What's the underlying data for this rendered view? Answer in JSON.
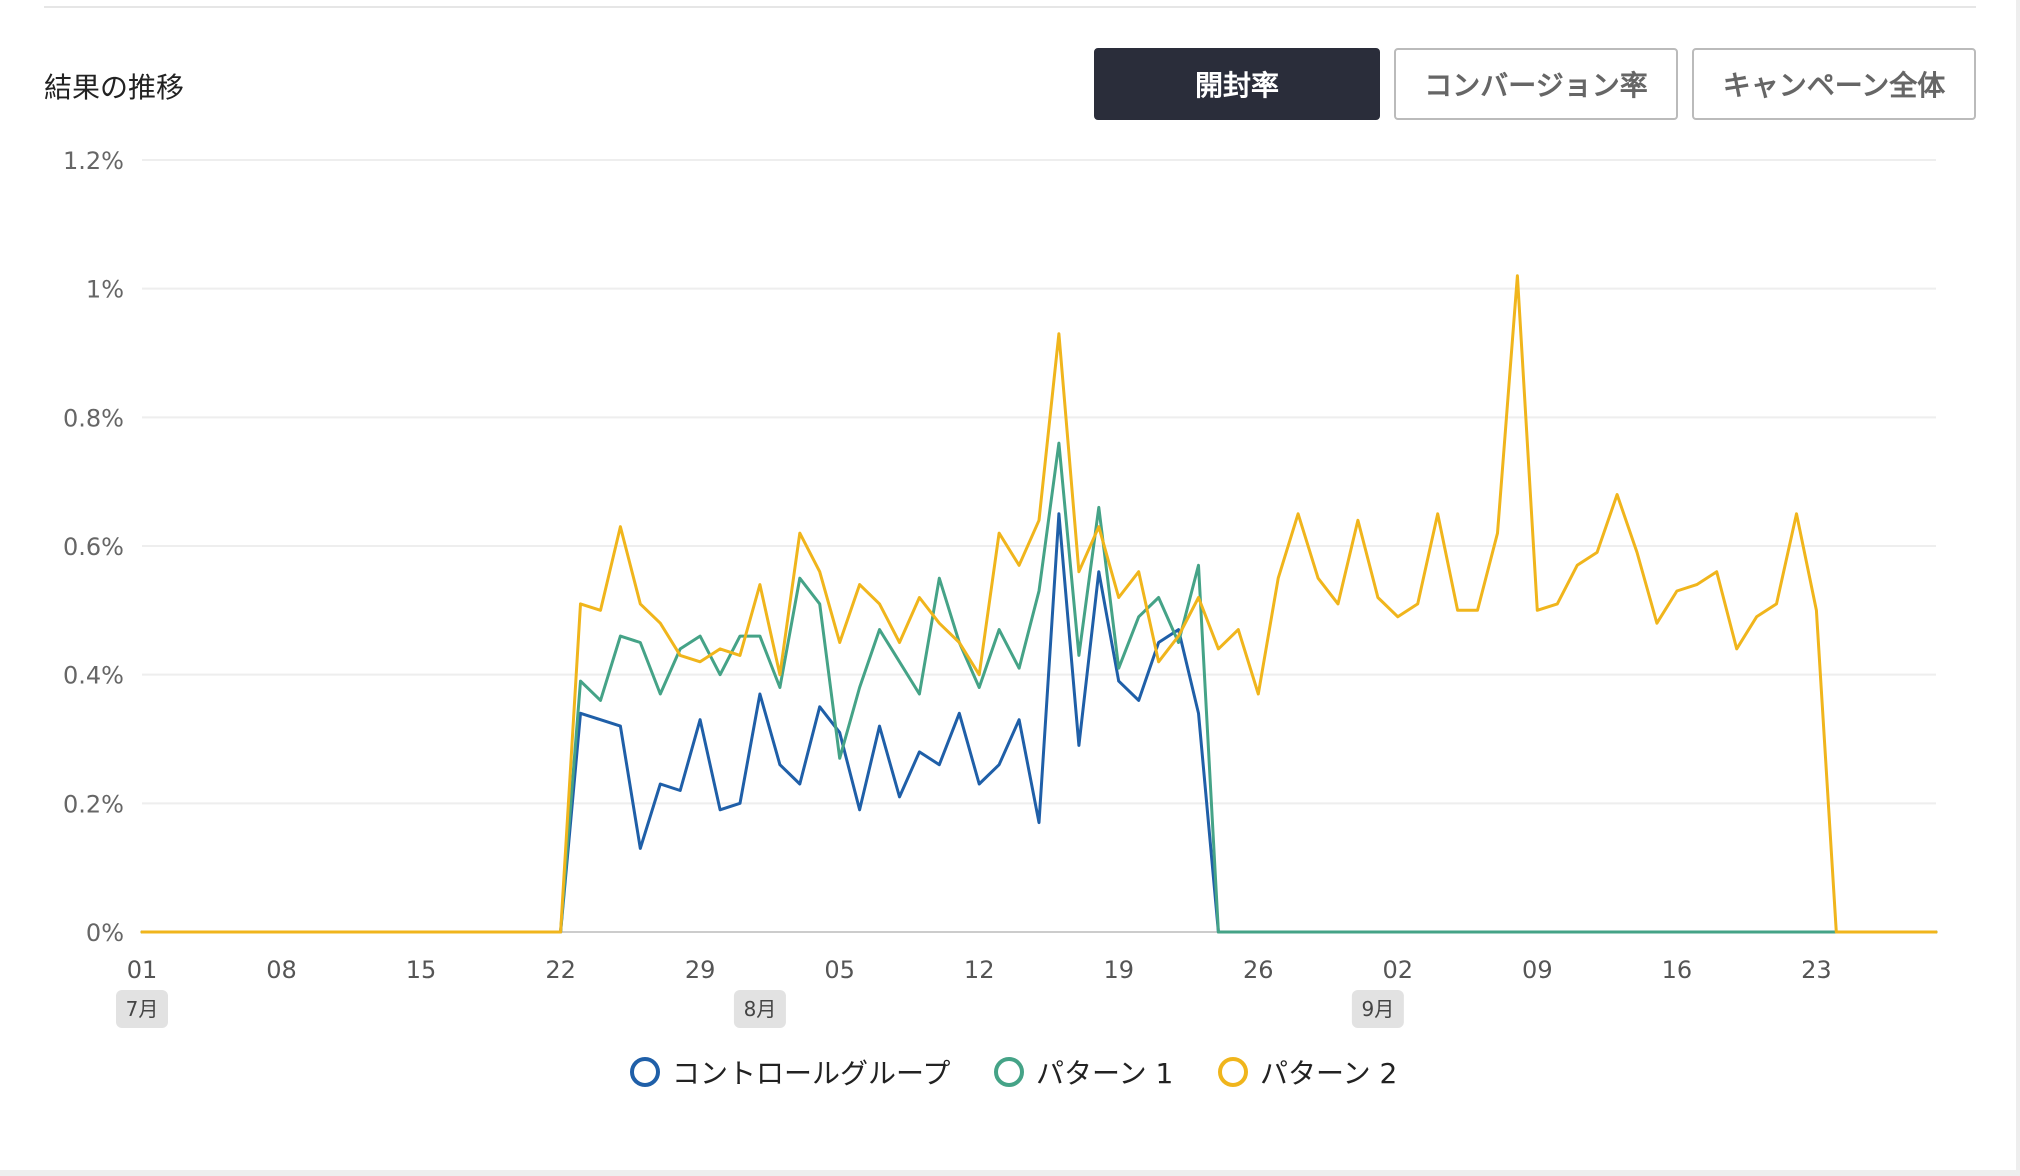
{
  "section_title": "結果の推移",
  "tabs": [
    {
      "label": "開封率",
      "active": true
    },
    {
      "label": "コンバージョン率",
      "active": false
    },
    {
      "label": "キャンペーン全体",
      "active": false
    }
  ],
  "chart_data": {
    "type": "line",
    "x_tick_labels": [
      "01",
      "08",
      "15",
      "22",
      "29",
      "05",
      "12",
      "19",
      "26",
      "02",
      "09",
      "16",
      "23"
    ],
    "month_labels": [
      "7月",
      "8月",
      "9月"
    ],
    "y_tick_labels": [
      "0%",
      "0.2%",
      "0.4%",
      "0.6%",
      "0.8%",
      "1%",
      "1.2%"
    ],
    "ylim": [
      0,
      1.2
    ],
    "grid": true,
    "legend_position": "bottom",
    "series": [
      {
        "name": "コントロールグループ",
        "color": "#1f5fa8",
        "start_index": 21,
        "values": [
          0,
          0.34,
          0.33,
          0.32,
          0.13,
          0.23,
          0.22,
          0.33,
          0.19,
          0.2,
          0.37,
          0.26,
          0.23,
          0.35,
          0.31,
          0.19,
          0.32,
          0.21,
          0.28,
          0.26,
          0.34,
          0.23,
          0.26,
          0.33,
          0.17,
          0.65,
          0.29,
          0.56,
          0.39,
          0.36,
          0.45,
          0.47,
          0.34,
          0,
          0,
          0,
          0,
          0,
          0,
          0,
          0,
          0,
          0,
          0,
          0,
          0,
          0,
          0,
          0,
          0,
          0,
          0,
          0,
          0,
          0,
          0,
          0,
          0,
          0,
          0,
          0,
          0,
          0,
          0,
          0,
          0,
          0,
          0,
          0,
          0,
          0,
          0
        ]
      },
      {
        "name": "パターン 1",
        "color": "#45a387",
        "start_index": 21,
        "values": [
          0,
          0.39,
          0.36,
          0.46,
          0.45,
          0.37,
          0.44,
          0.46,
          0.4,
          0.46,
          0.46,
          0.38,
          0.55,
          0.51,
          0.27,
          0.38,
          0.47,
          0.42,
          0.37,
          0.55,
          0.45,
          0.38,
          0.47,
          0.41,
          0.53,
          0.76,
          0.43,
          0.66,
          0.41,
          0.49,
          0.52,
          0.45,
          0.57,
          0,
          0,
          0,
          0,
          0,
          0,
          0,
          0,
          0,
          0,
          0,
          0,
          0,
          0,
          0,
          0,
          0,
          0,
          0,
          0,
          0,
          0,
          0,
          0,
          0,
          0,
          0,
          0,
          0,
          0,
          0,
          0,
          0,
          0,
          0,
          0,
          0,
          0,
          0
        ]
      },
      {
        "name": "パターン 2",
        "color": "#f0b51c",
        "start_index": 21,
        "values": [
          0,
          0.51,
          0.5,
          0.63,
          0.51,
          0.48,
          0.43,
          0.42,
          0.44,
          0.43,
          0.54,
          0.4,
          0.62,
          0.56,
          0.45,
          0.54,
          0.51,
          0.45,
          0.52,
          0.48,
          0.45,
          0.4,
          0.62,
          0.57,
          0.64,
          0.93,
          0.56,
          0.63,
          0.52,
          0.56,
          0.42,
          0.46,
          0.52,
          0.44,
          0.47,
          0.37,
          0.55,
          0.65,
          0.55,
          0.51,
          0.64,
          0.52,
          0.49,
          0.51,
          0.65,
          0.5,
          0.5,
          0.62,
          1.02,
          0.5,
          0.51,
          0.57,
          0.59,
          0.68,
          0.59,
          0.48,
          0.53,
          0.54,
          0.56,
          0.44,
          0.49,
          0.51,
          0.65,
          0.5,
          0,
          0,
          0,
          0,
          0,
          0
        ]
      }
    ]
  }
}
